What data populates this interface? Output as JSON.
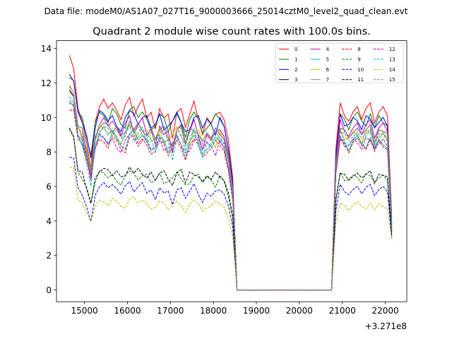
{
  "suptitle": "Data file: modeM0/AS1A07_027T16_9000003666_25014cztM0_level2_quad_clean.evt",
  "chart_data": {
    "type": "line",
    "title": "Quadrant 2 module wise count rates with 100.0s bins.",
    "xlabel": "",
    "ylabel": "",
    "x_offset_label": "+3.271e8",
    "xlim": [
      14350,
      22500
    ],
    "ylim": [
      -0.68,
      14.45
    ],
    "xticks": [
      15000,
      16000,
      17000,
      18000,
      19000,
      20000,
      21000,
      22000
    ],
    "yticks": [
      0,
      2,
      4,
      6,
      8,
      10,
      12,
      14
    ],
    "grid": false,
    "legend_position": "top-right",
    "legend_columns": 4,
    "segments": [
      {
        "x_start": 14650,
        "x_end": 18550,
        "step": 100
      },
      {
        "x_start": 18550,
        "x_end": 20750,
        "step": 100,
        "flat": 0
      },
      {
        "x_start": 20750,
        "x_end": 22150,
        "step": 100
      }
    ],
    "series": [
      {
        "name": "0",
        "color": "#ff0000",
        "dash": "solid",
        "shape": "a",
        "base1": 10.3,
        "base2": 10.1,
        "start1": 13.6,
        "end2": 4.2
      },
      {
        "name": "1",
        "color": "#008000",
        "dash": "solid",
        "shape": "b",
        "base1": 9.9,
        "base2": 9.7,
        "start1": 12.3,
        "end2": 3.9
      },
      {
        "name": "2",
        "color": "#0000ff",
        "dash": "solid",
        "shape": "c",
        "base1": 9.8,
        "base2": 9.6,
        "start1": 12.5,
        "end2": 3.8
      },
      {
        "name": "3",
        "color": "#000000",
        "dash": "solid",
        "shape": "d",
        "base1": 9.2,
        "base2": 9.0,
        "start1": 11.6,
        "end2": 3.5
      },
      {
        "name": "4",
        "color": "#bf00bf",
        "dash": "solid",
        "shape": "a",
        "base1": 9.3,
        "base2": 9.2,
        "start1": 11.8,
        "end2": 3.7
      },
      {
        "name": "5",
        "color": "#00bfbf",
        "dash": "solid",
        "shape": "b",
        "base1": 8.6,
        "base2": 8.4,
        "start1": 10.8,
        "end2": 3.3
      },
      {
        "name": "6",
        "color": "#bfbf00",
        "dash": "solid",
        "shape": "c",
        "base1": 9.0,
        "base2": 8.8,
        "start1": 11.9,
        "end2": 3.6
      },
      {
        "name": "7",
        "color": "#808080",
        "dash": "solid",
        "shape": "d",
        "base1": 9.2,
        "base2": 9.0,
        "start1": 11.5,
        "end2": 3.6
      },
      {
        "name": "8",
        "color": "#ff0000",
        "dash": "dashed",
        "shape": "b",
        "base1": 8.4,
        "base2": 8.3,
        "start1": 10.4,
        "end2": 3.4
      },
      {
        "name": "9",
        "color": "#008000",
        "dash": "dashed",
        "shape": "c",
        "base1": 6.5,
        "base2": 6.4,
        "start1": 9.3,
        "end2": 3.2
      },
      {
        "name": "10",
        "color": "#0000ff",
        "dash": "dashed",
        "shape": "a",
        "base1": 5.8,
        "base2": 5.7,
        "start1": 7.7,
        "end2": 3.0
      },
      {
        "name": "11",
        "color": "#000000",
        "dash": "dashed",
        "shape": "d",
        "base1": 6.7,
        "base2": 6.5,
        "start1": 9.4,
        "end2": 3.1
      },
      {
        "name": "12",
        "color": "#bf00bf",
        "dash": "dashed",
        "shape": "c",
        "base1": 8.5,
        "base2": 8.4,
        "start1": 10.9,
        "end2": 3.4
      },
      {
        "name": "13",
        "color": "#00bfbf",
        "dash": "dashed",
        "shape": "a",
        "base1": 8.8,
        "base2": 8.6,
        "start1": 11.2,
        "end2": 3.5
      },
      {
        "name": "14",
        "color": "#bfbf00",
        "dash": "dashed",
        "shape": "b",
        "base1": 5.0,
        "base2": 4.8,
        "start1": 7.1,
        "end2": 3.0
      },
      {
        "name": "15",
        "color": "#808080",
        "dash": "dashed",
        "shape": "d",
        "base1": 9.0,
        "base2": 8.8,
        "start1": 11.0,
        "end2": 3.6
      }
    ]
  }
}
